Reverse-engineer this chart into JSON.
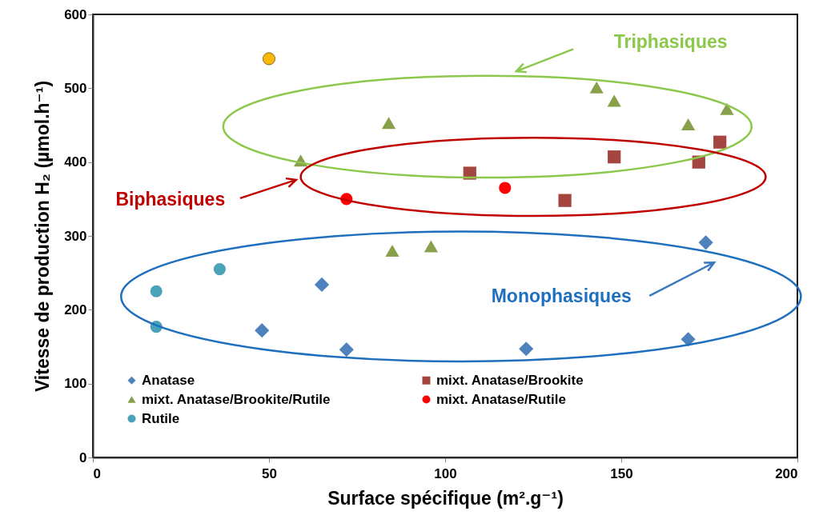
{
  "chart_data": {
    "type": "scatter",
    "xlabel": "Surface spécifique (m².g⁻¹)",
    "ylabel": "Vitesse de production H₂ (µmol.h⁻¹)",
    "xlim": [
      0,
      200
    ],
    "xticks": [
      0,
      50,
      100,
      150,
      200
    ],
    "ylim": [
      0,
      600
    ],
    "yticks": [
      0,
      100,
      200,
      300,
      400,
      500,
      600
    ],
    "grid": false,
    "legend": "bottom",
    "series": [
      {
        "name": "Anatase",
        "color": "#4f81bd",
        "marker": "diamond",
        "x": [
          48,
          65,
          72,
          123,
          169,
          174
        ],
        "values": [
          172,
          234,
          146,
          147,
          160,
          291
        ]
      },
      {
        "name": "mixt. Anatase/Brookite/Rutile",
        "color": "#88a04a",
        "marker": "triangle",
        "x": [
          59,
          84,
          85,
          96,
          143,
          148,
          169,
          180
        ],
        "values": [
          402,
          453,
          280,
          286,
          501,
          483,
          451,
          472
        ]
      },
      {
        "name": "Rutile",
        "color": "#4aa3b8",
        "marker": "circle",
        "x": [
          18,
          18,
          36
        ],
        "values": [
          225,
          177,
          255
        ]
      },
      {
        "name": "mixt. Anatase/Brookite",
        "color": "#a5453f",
        "marker": "square",
        "x": [
          107,
          134,
          148,
          172,
          178
        ],
        "values": [
          385,
          348,
          407,
          400,
          427
        ]
      },
      {
        "color": "#f9b80a",
        "marker": "circle",
        "x": [
          50
        ],
        "values": [
          540
        ]
      },
      {
        "name": "mixt. Anatase/Rutile",
        "color": "#ff0000",
        "marker": "circle",
        "x": [
          72,
          117
        ],
        "values": [
          350,
          365
        ]
      }
    ],
    "annotations": [
      "Triphasiques",
      "Biphasiques",
      "Monophasiques"
    ]
  }
}
